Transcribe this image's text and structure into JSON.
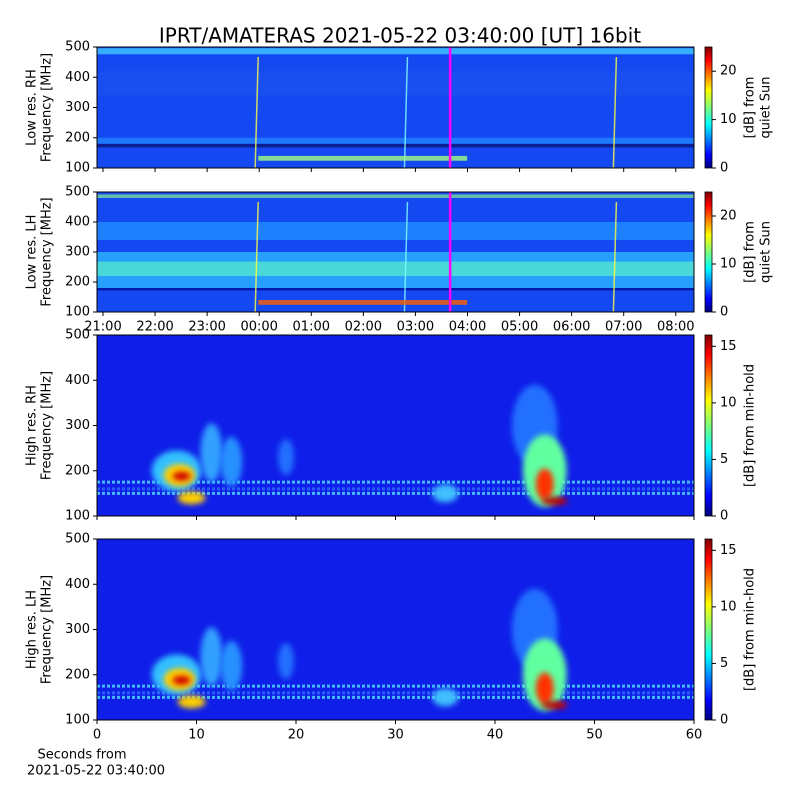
{
  "title": "IPRT/AMATERAS 2021-05-22 03:40:00 [UT]   16bit",
  "chart_data": [
    {
      "type": "spectrogram",
      "ylabel": [
        "Low res. RH",
        "Frequency [MHz]"
      ],
      "xlim": [
        20.885,
        32.35
      ],
      "xticks": [
        {
          "value": 21,
          "label": "21:00"
        },
        {
          "value": 22,
          "label": "22:00"
        },
        {
          "value": 23,
          "label": "23:00"
        },
        {
          "value": 24,
          "label": "00:00"
        },
        {
          "value": 25,
          "label": "01:00"
        },
        {
          "value": 26,
          "label": "02:00"
        },
        {
          "value": 27,
          "label": "03:00"
        },
        {
          "value": 28,
          "label": "04:00"
        },
        {
          "value": 29,
          "label": "05:00"
        },
        {
          "value": 30,
          "label": "06:00"
        },
        {
          "value": 31,
          "label": "07:00"
        },
        {
          "value": 32,
          "label": "08:00"
        }
      ],
      "show_xtick_labels": false,
      "ylim": [
        100,
        500
      ],
      "yticks": [
        100,
        200,
        300,
        400,
        500
      ],
      "marker": 27.667,
      "marker_color": "#ff00ff",
      "cbar_label": [
        "[dB] from",
        "quiet Sun"
      ],
      "clim": [
        0,
        25
      ],
      "cticks": [
        0,
        10,
        20
      ]
    },
    {
      "type": "spectrogram",
      "ylabel": [
        "Low res. LH",
        "Frequency [MHz]"
      ],
      "xlim": [
        20.885,
        32.35
      ],
      "xticks": [
        {
          "value": 21,
          "label": "21:00"
        },
        {
          "value": 22,
          "label": "22:00"
        },
        {
          "value": 23,
          "label": "23:00"
        },
        {
          "value": 24,
          "label": "00:00"
        },
        {
          "value": 25,
          "label": "01:00"
        },
        {
          "value": 26,
          "label": "02:00"
        },
        {
          "value": 27,
          "label": "03:00"
        },
        {
          "value": 28,
          "label": "04:00"
        },
        {
          "value": 29,
          "label": "05:00"
        },
        {
          "value": 30,
          "label": "06:00"
        },
        {
          "value": 31,
          "label": "07:00"
        },
        {
          "value": 32,
          "label": "08:00"
        }
      ],
      "show_xtick_labels": true,
      "ylim": [
        100,
        500
      ],
      "yticks": [
        100,
        200,
        300,
        400,
        500
      ],
      "marker": 27.667,
      "marker_color": "#ff00ff",
      "cbar_label": [
        "[dB] from",
        "quiet Sun"
      ],
      "clim": [
        0,
        25
      ],
      "cticks": [
        0,
        10,
        20
      ]
    },
    {
      "type": "spectrogram",
      "ylabel": [
        "High res. RH",
        "Frequency [MHz]"
      ],
      "xlim": [
        0,
        60
      ],
      "xticks": [
        0,
        10,
        20,
        30,
        40,
        50,
        60
      ],
      "show_xtick_labels": false,
      "ylim": [
        100,
        500
      ],
      "yticks": [
        100,
        200,
        300,
        400,
        500
      ],
      "cbar_label": [
        "[dB] from min-hold"
      ],
      "clim": [
        0,
        16
      ],
      "cticks": [
        0,
        5,
        10,
        15
      ]
    },
    {
      "type": "spectrogram",
      "ylabel": [
        "High res. LH",
        "Frequency [MHz]"
      ],
      "xlim": [
        0,
        60
      ],
      "xticks": [
        0,
        10,
        20,
        30,
        40,
        50,
        60
      ],
      "show_xtick_labels": true,
      "xlabel": [
        "Seconds from",
        "2021-05-22 03:40:00"
      ],
      "ylim": [
        100,
        500
      ],
      "yticks": [
        100,
        200,
        300,
        400,
        500
      ],
      "cbar_label": [
        "[dB] from min-hold"
      ],
      "clim": [
        0,
        16
      ],
      "cticks": [
        0,
        5,
        10,
        15
      ]
    }
  ]
}
